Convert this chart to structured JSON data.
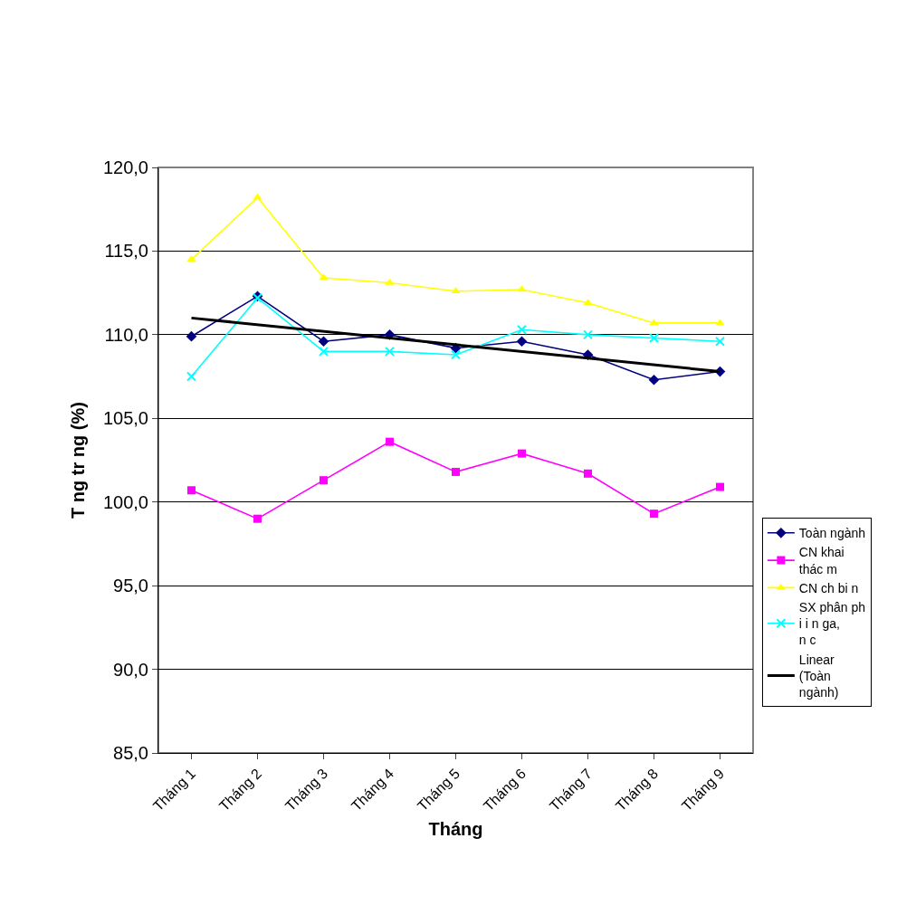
{
  "chart_data": {
    "type": "line",
    "xlabel": "Tháng",
    "ylabel": "T ng tr ng (%)",
    "categories": [
      "Tháng 1",
      "Tháng 2",
      "Tháng 3",
      "Tháng 4",
      "Tháng 5",
      "Tháng 6",
      "Tháng 7",
      "Tháng 8",
      "Tháng 9"
    ],
    "series": [
      {
        "name": "Toàn ngành",
        "color": "#000080",
        "marker": "diamond",
        "values": [
          109.9,
          112.3,
          109.6,
          110.0,
          109.2,
          109.6,
          108.8,
          107.3,
          107.8
        ]
      },
      {
        "name": "CN khai thác m",
        "color": "#ff00ff",
        "marker": "square",
        "values": [
          100.7,
          99.0,
          101.3,
          103.6,
          101.8,
          102.9,
          101.7,
          99.3,
          100.9
        ]
      },
      {
        "name": "CN ch bi n",
        "color": "#ffff00",
        "marker": "triangle",
        "values": [
          114.5,
          118.2,
          113.4,
          113.1,
          112.6,
          112.7,
          111.9,
          110.7,
          110.7
        ]
      },
      {
        "name": "SX phân ph i i n ga, n c",
        "color": "#00ffff",
        "marker": "cross",
        "values": [
          107.5,
          112.2,
          109.0,
          109.0,
          108.8,
          110.3,
          110.0,
          109.8,
          109.6
        ]
      },
      {
        "name": "Linear (Toàn ngành)",
        "color": "#000000",
        "marker": "none",
        "x": [
          "Tháng 1",
          "Tháng 9"
        ],
        "values": [
          111.0,
          107.8
        ]
      }
    ],
    "ylim": [
      85,
      120
    ],
    "yticks": [
      {
        "value": 85,
        "label": "85,0"
      },
      {
        "value": 90,
        "label": "90,0"
      },
      {
        "value": 95,
        "label": "95,0"
      },
      {
        "value": 100,
        "label": "100,0"
      },
      {
        "value": 105,
        "label": "105,0"
      },
      {
        "value": 110,
        "label": "110,0"
      },
      {
        "value": 115,
        "label": "115,0"
      },
      {
        "value": 120,
        "label": "120,0"
      }
    ],
    "grid": "y",
    "legend": "right"
  }
}
